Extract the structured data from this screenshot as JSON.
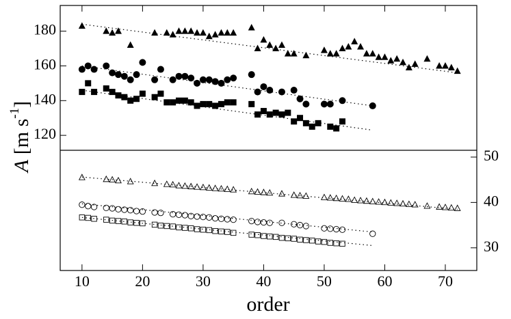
{
  "chart_data": {
    "type": "scatter",
    "xlabel": "order",
    "ylabel": [
      "A",
      " [m s",
      "-1",
      "]"
    ],
    "xlim": [
      6.4,
      75.2
    ],
    "xticks": [
      10,
      20,
      30,
      40,
      50,
      60,
      70
    ],
    "ylim": [
      111.4,
      194.8
    ],
    "yticks": [
      120,
      140,
      160,
      180
    ],
    "y2lim": [
      25,
      51.5
    ],
    "y2ticks": [
      30,
      40,
      50
    ],
    "series": [
      {
        "marker": "triangle",
        "filled": true,
        "color": "#000000",
        "x": [
          10,
          14,
          15,
          16,
          18,
          22,
          24,
          25,
          26,
          27,
          28,
          29,
          30,
          31,
          32,
          33,
          34,
          35,
          38,
          39,
          40,
          41,
          42,
          43,
          44,
          45,
          47,
          50,
          51,
          52,
          53,
          54,
          55,
          56,
          57,
          58,
          59,
          60,
          61,
          62,
          63,
          64,
          65,
          67,
          69,
          70,
          71,
          72
        ],
        "values": [
          183,
          180,
          179,
          180,
          172,
          179,
          179,
          178,
          180,
          180,
          180,
          179,
          179,
          177,
          178,
          179,
          179,
          179,
          182,
          170,
          175,
          172,
          170,
          172,
          167,
          167,
          166,
          169,
          167,
          167,
          170,
          171,
          174,
          171,
          167,
          167,
          165,
          165,
          163,
          164,
          162,
          159,
          161,
          164,
          160,
          160,
          159,
          157
        ]
      },
      {
        "marker": "circle",
        "filled": true,
        "color": "#000000",
        "x": [
          10,
          11,
          12,
          14,
          15,
          16,
          17,
          18,
          19,
          20,
          22,
          23,
          25,
          26,
          27,
          28,
          29,
          30,
          31,
          32,
          33,
          34,
          35,
          38,
          39,
          40,
          41,
          43,
          45,
          46,
          47,
          50,
          51,
          53,
          58
        ],
        "values": [
          158,
          160,
          158,
          160,
          156,
          155,
          154,
          152,
          155,
          162,
          152,
          158,
          152,
          154,
          154,
          153,
          150,
          152,
          152,
          151,
          150,
          152,
          153,
          155,
          145,
          148,
          146,
          145,
          146,
          141,
          138,
          138,
          138,
          140,
          137
        ]
      },
      {
        "marker": "square",
        "filled": true,
        "color": "#000000",
        "x": [
          10,
          11,
          12,
          14,
          15,
          16,
          17,
          18,
          19,
          20,
          22,
          23,
          24,
          25,
          26,
          27,
          28,
          29,
          30,
          31,
          32,
          33,
          34,
          35,
          38,
          39,
          40,
          41,
          42,
          43,
          44,
          45,
          46,
          47,
          48,
          49,
          51,
          52,
          53
        ],
        "values": [
          145,
          150,
          145,
          147,
          145,
          143,
          142,
          140,
          141,
          144,
          142,
          144,
          139,
          139,
          140,
          140,
          139,
          137,
          138,
          138,
          137,
          138,
          139,
          139,
          138,
          132,
          134,
          132,
          133,
          132,
          133,
          128,
          130,
          127,
          125,
          127,
          125,
          124,
          128
        ]
      },
      {
        "line": "dotted",
        "color": "#000000",
        "x": [
          10,
          72
        ],
        "values": [
          184,
          156
        ]
      },
      {
        "line": "dotted",
        "color": "#000000",
        "x": [
          10,
          58
        ],
        "values": [
          160,
          137
        ]
      },
      {
        "line": "dotted",
        "color": "#000000",
        "x": [
          10,
          58
        ],
        "values": [
          146,
          123
        ]
      },
      {
        "marker": "triangle",
        "filled": false,
        "color": "#000000",
        "axis": "y2",
        "x": [
          10,
          14,
          15,
          16,
          18,
          22,
          24,
          25,
          26,
          27,
          28,
          29,
          30,
          31,
          32,
          33,
          34,
          35,
          38,
          39,
          40,
          41,
          43,
          45,
          46,
          47,
          50,
          51,
          52,
          53,
          54,
          55,
          56,
          57,
          58,
          59,
          60,
          61,
          62,
          63,
          64,
          65,
          67,
          69,
          70,
          71,
          72
        ],
        "values": [
          45.5,
          45.1,
          45.0,
          44.8,
          44.6,
          44.2,
          44.0,
          43.9,
          43.7,
          43.6,
          43.5,
          43.4,
          43.3,
          43.2,
          43.1,
          43.0,
          42.9,
          42.8,
          42.4,
          42.3,
          42.2,
          42.1,
          41.9,
          41.6,
          41.5,
          41.4,
          41.1,
          41.0,
          40.9,
          40.8,
          40.7,
          40.5,
          40.4,
          40.3,
          40.2,
          40.1,
          40.0,
          39.9,
          39.8,
          39.7,
          39.6,
          39.5,
          39.2,
          39.0,
          38.9,
          38.8,
          38.7
        ]
      },
      {
        "marker": "circle",
        "filled": false,
        "color": "#000000",
        "axis": "y2",
        "x": [
          10,
          11,
          12,
          14,
          15,
          16,
          17,
          18,
          19,
          20,
          22,
          23,
          25,
          26,
          27,
          28,
          29,
          30,
          31,
          32,
          33,
          34,
          35,
          38,
          39,
          40,
          41,
          43,
          45,
          46,
          47,
          50,
          51,
          52,
          53,
          58
        ],
        "values": [
          39.5,
          39.2,
          39.0,
          38.8,
          38.7,
          38.5,
          38.4,
          38.3,
          38.1,
          38.0,
          37.8,
          37.7,
          37.4,
          37.3,
          37.2,
          37.0,
          36.9,
          36.8,
          36.7,
          36.5,
          36.4,
          36.3,
          36.2,
          35.9,
          35.7,
          35.6,
          35.5,
          35.5,
          35.2,
          35.0,
          34.8,
          34.3,
          34.2,
          34.1,
          34.0,
          33.1
        ]
      },
      {
        "marker": "square",
        "filled": false,
        "color": "#000000",
        "axis": "y2",
        "x": [
          10,
          11,
          12,
          14,
          15,
          16,
          17,
          18,
          19,
          20,
          22,
          23,
          24,
          25,
          26,
          27,
          28,
          29,
          30,
          31,
          32,
          33,
          34,
          35,
          38,
          39,
          40,
          41,
          42,
          43,
          44,
          45,
          46,
          47,
          48,
          49,
          50,
          51,
          52,
          53
        ],
        "values": [
          36.7,
          36.6,
          36.4,
          36.2,
          36.0,
          35.9,
          35.8,
          35.6,
          35.5,
          35.4,
          35.1,
          34.9,
          34.8,
          34.7,
          34.5,
          34.4,
          34.3,
          34.1,
          34.0,
          33.9,
          33.7,
          33.6,
          33.5,
          33.3,
          32.9,
          32.8,
          32.6,
          32.5,
          32.4,
          32.2,
          32.1,
          32.0,
          31.8,
          31.7,
          31.6,
          31.4,
          31.3,
          31.1,
          31.0,
          30.9
        ]
      },
      {
        "line": "dotted",
        "color": "#000000",
        "axis": "y2",
        "x": [
          10,
          72
        ],
        "values": [
          45.6,
          38.5
        ]
      },
      {
        "line": "dotted",
        "color": "#000000",
        "axis": "y2",
        "x": [
          10,
          58
        ],
        "values": [
          39.7,
          33.5
        ]
      },
      {
        "line": "dotted",
        "color": "#000000",
        "axis": "y2",
        "x": [
          10,
          58
        ],
        "values": [
          36.7,
          30.5
        ]
      }
    ]
  }
}
